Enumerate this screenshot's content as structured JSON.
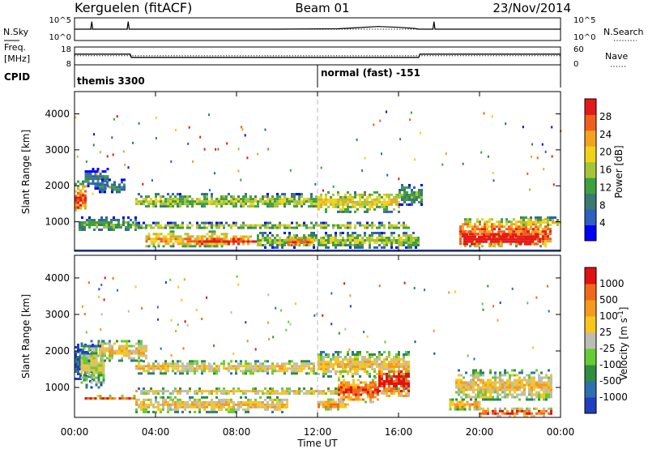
{
  "header": {
    "station": "Kerguelen (fitACF)",
    "beam": "Beam 01",
    "date": "23/Nov/2014"
  },
  "colors": {
    "ink": "#000000",
    "grid": "#bbbbbb",
    "power_scale": [
      "#0000ff",
      "#2f5fbf",
      "#3a7a70",
      "#3fa040",
      "#a6c43a",
      "#f1d21a",
      "#f4a321",
      "#f05f1c",
      "#e41a1a"
    ],
    "velocity_scale": [
      "#1f3fbf",
      "#2e6fb0",
      "#2f8f3f",
      "#66cc33",
      "#bdbdb5",
      "#f7c61f",
      "#f59b1b",
      "#ef6a1a",
      "#e01212"
    ]
  },
  "chart_data": [
    {
      "type": "line",
      "title": "",
      "ylabel": "N.Sky",
      "ylabel_right": "N.Search",
      "yticks_left": [
        "10^5",
        "10^0"
      ],
      "yticks_right": [
        "10^5",
        "10^0"
      ],
      "series": [
        {
          "name": "N.Sky",
          "style": "solid",
          "x": [
            0,
            0.8,
            0.85,
            0.9,
            2.6,
            2.65,
            2.7,
            10,
            13,
            14,
            15,
            16,
            16.8,
            17,
            17.7,
            17.75,
            17.8,
            23.9,
            24
          ],
          "y": [
            3,
            3,
            5,
            3,
            3,
            5,
            3,
            3,
            3.1,
            3.4,
            3.7,
            3.5,
            3.2,
            3,
            3,
            5,
            3,
            3,
            3
          ]
        },
        {
          "name": "N.Search",
          "style": "dotted",
          "x": [
            0,
            24
          ],
          "y": [
            3,
            3
          ]
        }
      ]
    },
    {
      "type": "line",
      "title": "",
      "ylabel": "Freq. [MHz]",
      "ylabel_right": "Nave",
      "yticks_left": [
        "18",
        "8"
      ],
      "yticks_right": [
        "60",
        "0"
      ],
      "ylim": [
        8,
        18
      ],
      "series": [
        {
          "name": "Freq.",
          "style": "solid",
          "x": [
            0,
            2.75,
            2.8,
            17,
            17.05,
            24
          ],
          "y": [
            14,
            14,
            12.2,
            12.2,
            14,
            14
          ]
        },
        {
          "name": "Nave",
          "style": "dotted",
          "x": [
            0,
            24
          ],
          "y": [
            13.1,
            13.1
          ]
        }
      ]
    },
    {
      "type": "table",
      "ylabel": "CPID",
      "segments": [
        {
          "x": 0,
          "label": "themis 3300"
        },
        {
          "x": 12,
          "label": "normal (fast) -151"
        }
      ]
    },
    {
      "type": "heatmap",
      "title": "",
      "ylabel": "Slant Range [km]",
      "colorbar_label": "Power [dB]",
      "colorbar_ticks": [
        "4",
        "8",
        "12",
        "16",
        "20",
        "24",
        "28"
      ],
      "yticks": [
        "1000",
        "2000",
        "3000",
        "4000"
      ],
      "xlim": [
        0,
        24
      ],
      "ylim": [
        180,
        4620
      ],
      "bands": [
        {
          "x": [
            0,
            0.6
          ],
          "range": [
            1300,
            2150
          ],
          "level": 5
        },
        {
          "x": [
            0.5,
            1.6
          ],
          "range": [
            1900,
            2500
          ],
          "level": 1
        },
        {
          "x": [
            1.2,
            2.5
          ],
          "range": [
            1800,
            2200
          ],
          "level": 1
        },
        {
          "x": [
            0.2,
            3.0
          ],
          "range": [
            750,
            1150
          ],
          "level": 2
        },
        {
          "x": [
            3,
            12
          ],
          "range": [
            1400,
            1800
          ],
          "level": 3
        },
        {
          "x": [
            12,
            16
          ],
          "range": [
            1300,
            1850
          ],
          "level": 4
        },
        {
          "x": [
            16,
            17.2
          ],
          "range": [
            1500,
            2050
          ],
          "level": 2
        },
        {
          "x": [
            3,
            16.5
          ],
          "range": [
            820,
            1000
          ],
          "level": 3
        },
        {
          "x": [
            3.5,
            7.5
          ],
          "range": [
            300,
            760
          ],
          "level": 5
        },
        {
          "x": [
            6,
            9
          ],
          "range": [
            380,
            620
          ],
          "level": 7
        },
        {
          "x": [
            9,
            17
          ],
          "range": [
            300,
            720
          ],
          "level": 3
        },
        {
          "x": [
            10.5,
            11.8
          ],
          "range": [
            350,
            600
          ],
          "level": 6
        },
        {
          "x": [
            19,
            23.5
          ],
          "range": [
            300,
            1100
          ],
          "level": 6
        },
        {
          "x": [
            19.2,
            23
          ],
          "range": [
            350,
            750
          ],
          "level": 8
        },
        {
          "x": [
            22,
            24
          ],
          "range": [
            900,
            1150
          ],
          "level": 4
        },
        {
          "x": [
            0,
            0.5
          ],
          "range": [
            1350,
            1900
          ],
          "level": 7
        }
      ]
    },
    {
      "type": "heatmap",
      "title": "",
      "ylabel": "Slant Range [km]",
      "xlabel": "Time UT",
      "colorbar_label": "Velocity [m s^-1]",
      "colorbar_ticks": [
        "1000",
        "500",
        "100",
        "25",
        "-25",
        "-100",
        "-500",
        "-1000"
      ],
      "yticks": [
        "1000",
        "2000",
        "3000",
        "4000"
      ],
      "xticks": [
        "00:00",
        "04:00",
        "08:00",
        "12:00",
        "16:00",
        "20:00",
        "00:00"
      ],
      "xlim": [
        0,
        24
      ],
      "ylim": [
        180,
        4620
      ],
      "bands": [
        {
          "x": [
            0,
            0.9
          ],
          "range": [
            1150,
            2200
          ],
          "level": 0
        },
        {
          "x": [
            0.3,
            1.4
          ],
          "range": [
            1000,
            2300
          ],
          "level": 3
        },
        {
          "x": [
            1.2,
            3.5
          ],
          "range": [
            1750,
            2300
          ],
          "level": 4
        },
        {
          "x": [
            3,
            12
          ],
          "range": [
            1400,
            1750
          ],
          "level": 4
        },
        {
          "x": [
            12,
            16.5
          ],
          "range": [
            1300,
            2000
          ],
          "level": 4
        },
        {
          "x": [
            3,
            16.5
          ],
          "range": [
            820,
            1000
          ],
          "level": 4
        },
        {
          "x": [
            3,
            10.5
          ],
          "range": [
            350,
            760
          ],
          "level": 4
        },
        {
          "x": [
            13,
            15
          ],
          "range": [
            600,
            1300
          ],
          "level": 6
        },
        {
          "x": [
            15,
            16.5
          ],
          "range": [
            800,
            1600
          ],
          "level": 7
        },
        {
          "x": [
            12,
            13.5
          ],
          "range": [
            400,
            700
          ],
          "level": 5
        },
        {
          "x": [
            18.8,
            23.5
          ],
          "range": [
            650,
            1500
          ],
          "level": 4
        },
        {
          "x": [
            18.5,
            20
          ],
          "range": [
            400,
            700
          ],
          "level": 5
        },
        {
          "x": [
            20,
            23.5
          ],
          "range": [
            250,
            450
          ],
          "level": 6
        },
        {
          "x": [
            0.5,
            3
          ],
          "range": [
            700,
            800
          ],
          "level": 6
        }
      ]
    }
  ]
}
